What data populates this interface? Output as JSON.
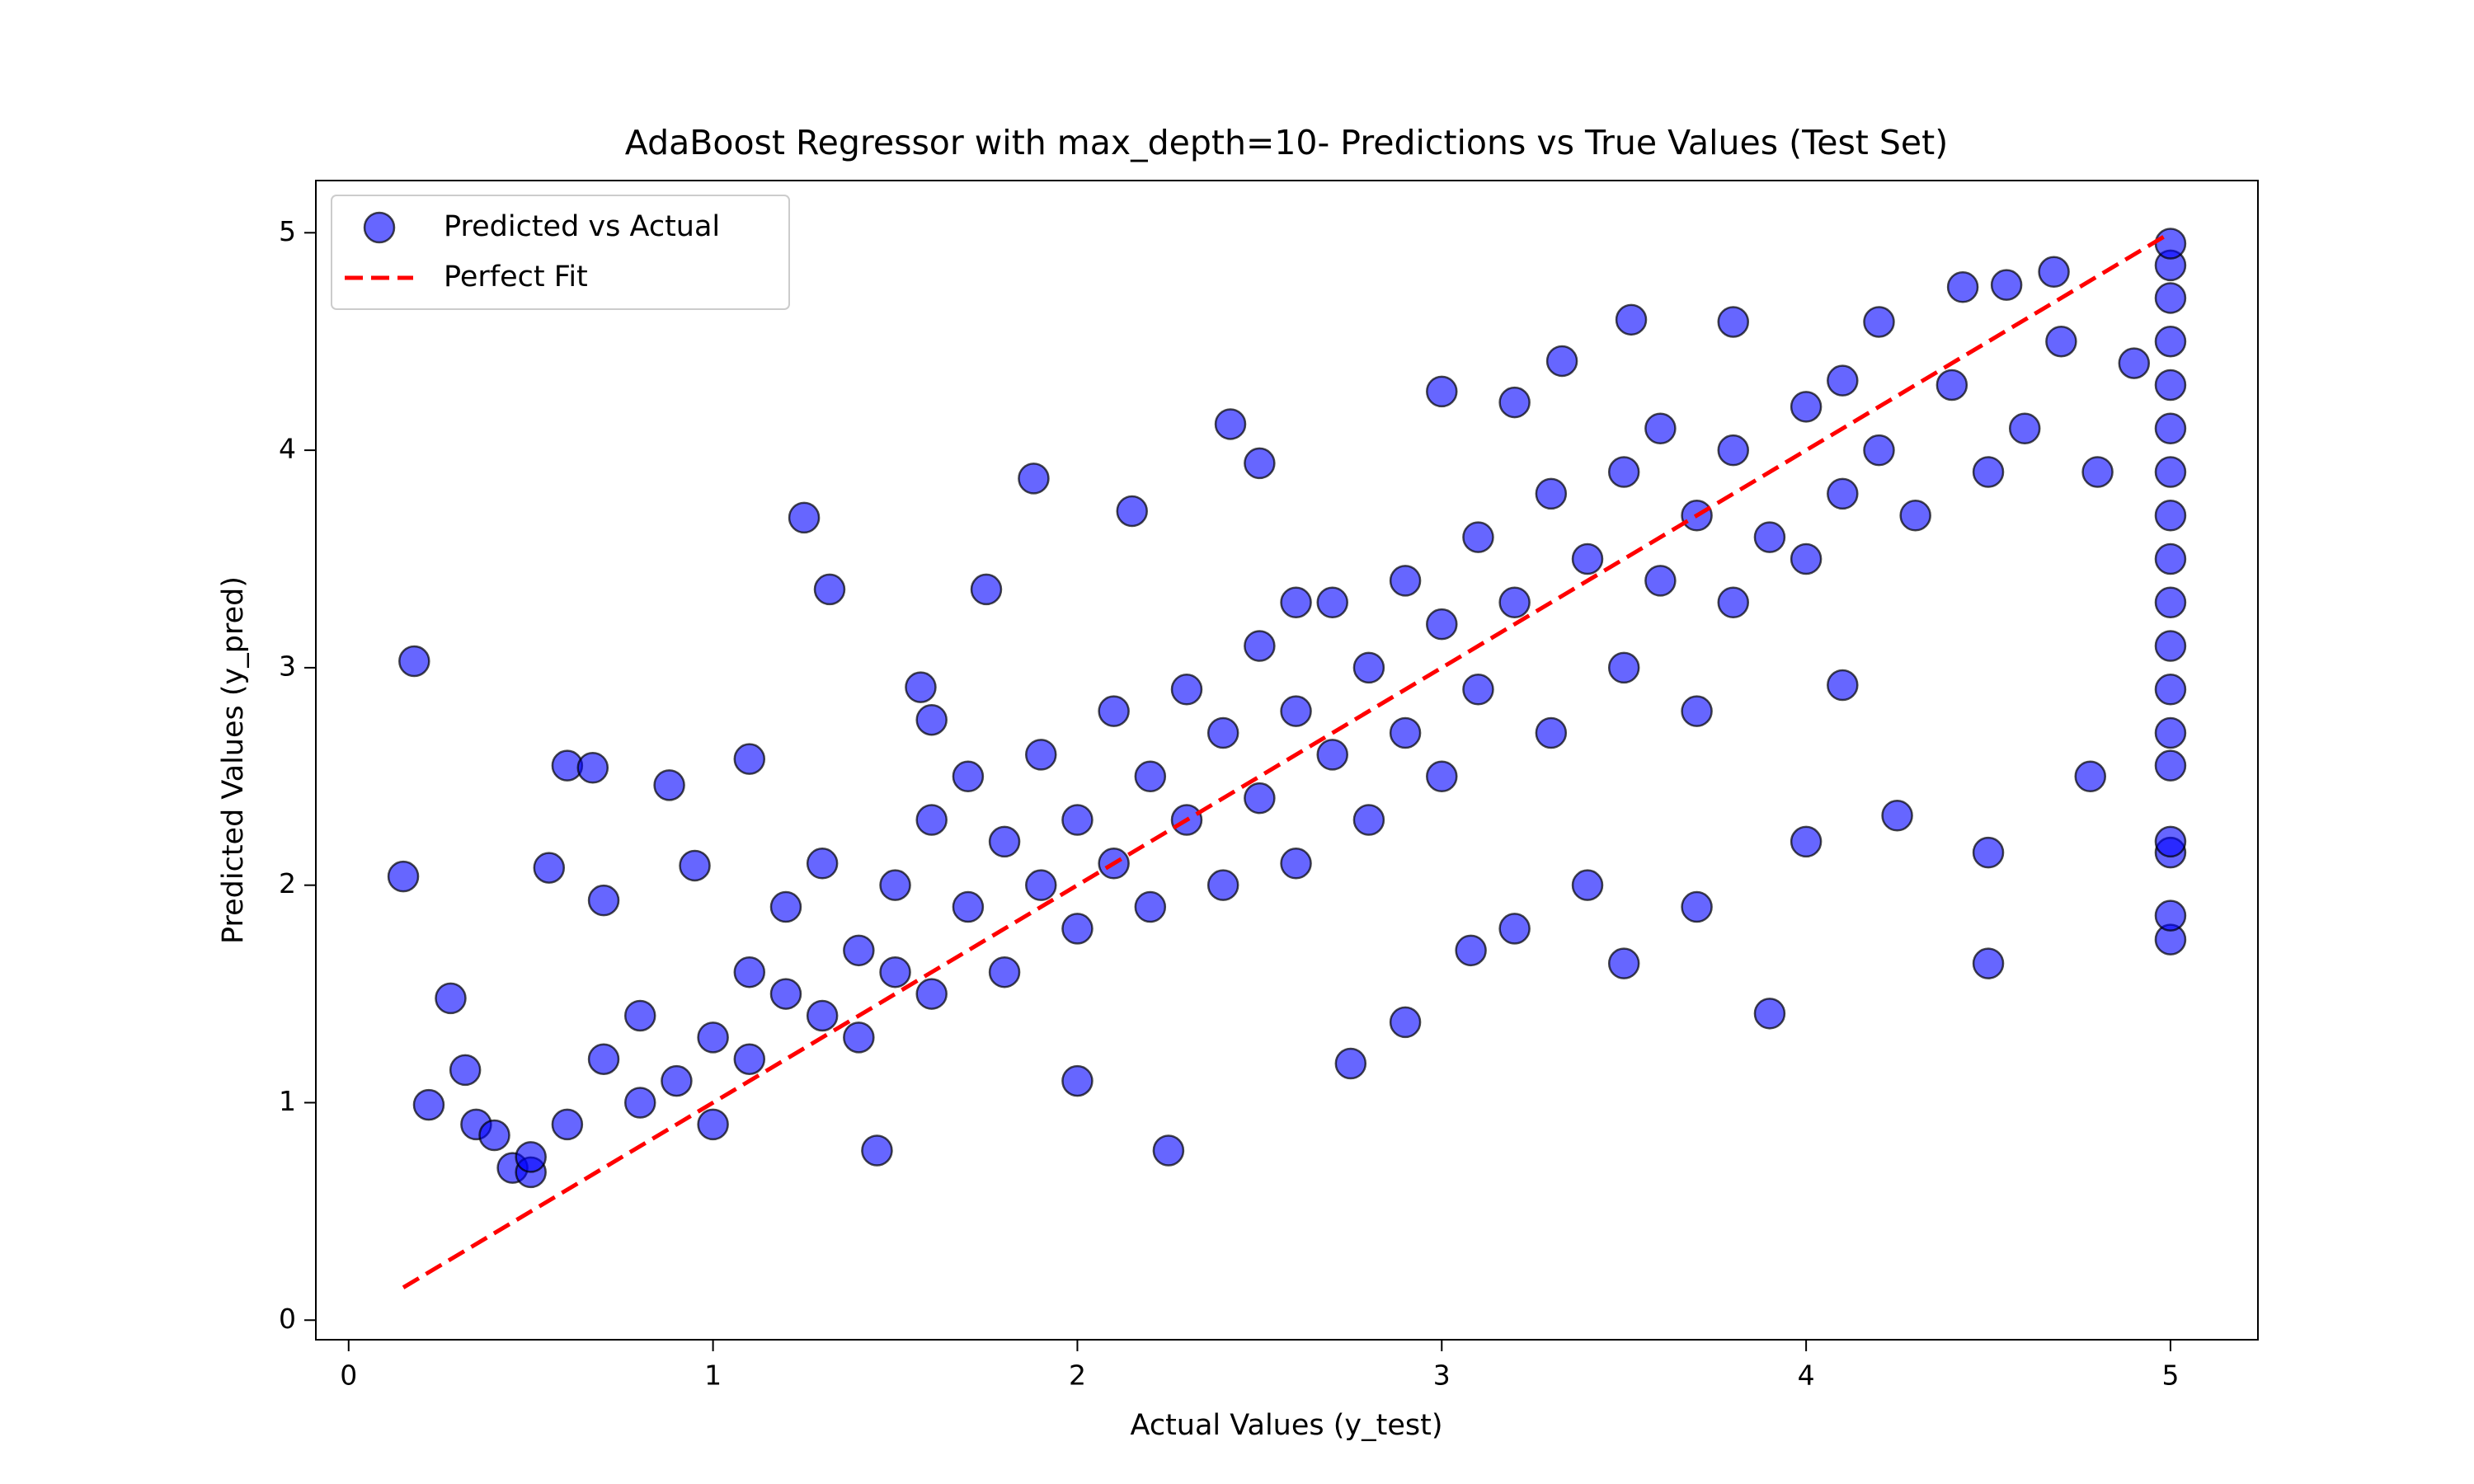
{
  "chart_data": {
    "type": "scatter",
    "title": "AdaBoost Regressor with max_depth=10- Predictions vs True Values (Test Set)",
    "x_label": "Actual Values (y_test)",
    "y_label": "Predicted Values (y_pred)",
    "xlim": [
      -0.09,
      5.24
    ],
    "ylim": [
      -0.09,
      5.24
    ],
    "xticks": [
      0,
      1,
      2,
      3,
      4,
      5
    ],
    "yticks": [
      0,
      1,
      2,
      3,
      4,
      5
    ],
    "grid": false,
    "legend": "upper left",
    "series": [
      {
        "name": "Predicted vs Actual",
        "color": "#0000ff",
        "edgecolor": "#000000",
        "opacity": 0.6,
        "x": [
          0.15,
          0.18,
          0.22,
          0.28,
          0.32,
          0.35,
          0.4,
          0.45,
          0.5,
          0.55,
          0.6,
          0.67,
          0.7,
          0.88,
          0.95,
          1.1,
          1.25,
          1.32,
          1.57,
          1.75,
          1.88,
          2.42,
          2.5,
          2.25,
          1.45,
          2.0,
          2.75,
          2.9,
          3.08,
          3.5,
          3.9,
          4.5,
          4.5,
          4.78,
          3.52,
          3.8,
          4.1,
          4.2,
          4.43,
          4.55,
          4.68,
          4.25,
          4.1,
          3.0,
          3.2,
          3.33,
          2.15,
          1.6,
          2.6,
          5,
          5,
          5,
          5,
          5,
          5,
          5,
          5,
          5,
          5,
          5,
          5,
          5,
          5,
          5,
          5,
          5,
          5,
          0.5,
          0.6,
          0.7,
          0.8,
          0.8,
          0.9,
          1.0,
          1.0,
          1.1,
          1.1,
          1.2,
          1.2,
          1.3,
          1.3,
          1.4,
          1.4,
          1.5,
          1.5,
          1.6,
          1.6,
          1.7,
          1.7,
          1.8,
          1.8,
          1.9,
          1.9,
          2.0,
          2.0,
          2.1,
          2.1,
          2.2,
          2.2,
          2.3,
          2.3,
          2.4,
          2.4,
          2.5,
          2.5,
          2.6,
          2.6,
          2.7,
          2.7,
          2.8,
          2.8,
          2.9,
          2.9,
          3.0,
          3.0,
          3.1,
          3.1,
          3.2,
          3.3,
          3.3,
          3.4,
          3.5,
          3.5,
          3.6,
          3.6,
          3.7,
          3.7,
          3.8,
          3.8,
          3.9,
          4.0,
          4.0,
          4.1,
          4.2,
          4.3,
          4.4,
          4.5,
          4.6,
          4.7,
          4.8,
          4.9,
          3.4,
          3.7,
          4.0,
          3.2
        ],
        "y": [
          2.04,
          3.03,
          0.99,
          1.48,
          1.15,
          0.9,
          0.85,
          0.7,
          0.68,
          2.08,
          2.55,
          2.54,
          1.93,
          2.46,
          2.09,
          2.58,
          3.69,
          3.36,
          2.91,
          3.36,
          3.87,
          4.12,
          3.94,
          0.78,
          0.78,
          1.1,
          1.18,
          1.37,
          1.7,
          1.64,
          1.41,
          1.64,
          2.15,
          2.5,
          4.6,
          4.59,
          4.32,
          4.59,
          4.75,
          4.76,
          4.82,
          2.32,
          2.92,
          4.27,
          4.22,
          4.41,
          3.72,
          2.76,
          3.3,
          1.75,
          1.86,
          2.15,
          2.2,
          2.55,
          2.7,
          2.9,
          3.1,
          3.3,
          3.5,
          3.7,
          3.9,
          4.1,
          4.3,
          4.5,
          4.7,
          4.85,
          4.95,
          0.75,
          0.9,
          1.2,
          1.0,
          1.4,
          1.1,
          1.3,
          0.9,
          1.6,
          1.2,
          1.5,
          1.9,
          1.4,
          2.1,
          1.7,
          1.3,
          2.0,
          1.6,
          2.3,
          1.5,
          1.9,
          2.5,
          2.2,
          1.6,
          2.6,
          2.0,
          2.3,
          1.8,
          2.8,
          2.1,
          2.5,
          1.9,
          2.9,
          2.3,
          2.7,
          2.0,
          3.1,
          2.4,
          2.8,
          2.1,
          3.3,
          2.6,
          3.0,
          2.3,
          3.4,
          2.7,
          3.2,
          2.5,
          3.6,
          2.9,
          3.3,
          3.8,
          2.7,
          3.5,
          3.9,
          3.0,
          4.1,
          3.4,
          3.7,
          2.8,
          4.0,
          3.3,
          3.6,
          4.2,
          3.5,
          3.8,
          4.0,
          3.7,
          4.3,
          3.9,
          4.1,
          4.5,
          3.9,
          4.4,
          2.0,
          1.9,
          2.2,
          1.8
        ]
      },
      {
        "name": "Perfect Fit",
        "type": "line",
        "color": "#ff0000",
        "linestyle": "dashed",
        "x": [
          0.15,
          5.0
        ],
        "y": [
          0.15,
          5.0
        ]
      }
    ]
  }
}
